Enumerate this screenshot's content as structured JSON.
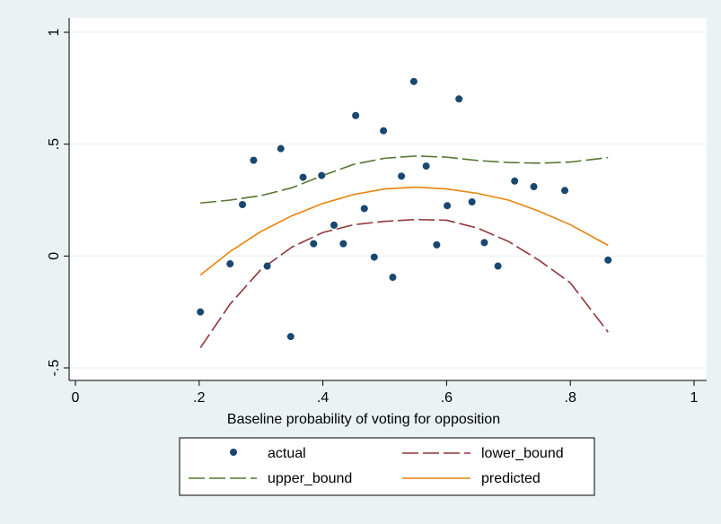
{
  "chart_data": {
    "type": "scatter",
    "title": "",
    "xlabel": "Baseline probability of voting for opposition",
    "ylabel": "",
    "xlim": [
      0,
      1
    ],
    "ylim": [
      -0.55,
      1.05
    ],
    "x_ticks": [
      {
        "value": 0,
        "label": "0"
      },
      {
        "value": 0.2,
        "label": ".2"
      },
      {
        "value": 0.4,
        "label": ".4"
      },
      {
        "value": 0.6,
        "label": ".6"
      },
      {
        "value": 0.8,
        "label": ".8"
      },
      {
        "value": 1,
        "label": "1"
      }
    ],
    "y_ticks": [
      {
        "value": -0.5,
        "label": "-.5"
      },
      {
        "value": 0,
        "label": "0"
      },
      {
        "value": 0.5,
        "label": ".5"
      },
      {
        "value": 1,
        "label": "1"
      }
    ],
    "grid": "horizontal",
    "legend_position": "bottom",
    "series": [
      {
        "name": "actual",
        "kind": "scatter",
        "color": "#1a476f",
        "points": [
          [
            0.202,
            -0.25
          ],
          [
            0.25,
            -0.035
          ],
          [
            0.27,
            0.23
          ],
          [
            0.288,
            0.428
          ],
          [
            0.31,
            -0.045
          ],
          [
            0.332,
            0.48
          ],
          [
            0.348,
            -0.36
          ],
          [
            0.368,
            0.352
          ],
          [
            0.385,
            0.055
          ],
          [
            0.398,
            0.36
          ],
          [
            0.418,
            0.138
          ],
          [
            0.433,
            0.055
          ],
          [
            0.453,
            0.628
          ],
          [
            0.467,
            0.212
          ],
          [
            0.483,
            -0.005
          ],
          [
            0.498,
            0.56
          ],
          [
            0.513,
            -0.095
          ],
          [
            0.527,
            0.357
          ],
          [
            0.547,
            0.78
          ],
          [
            0.567,
            0.402
          ],
          [
            0.584,
            0.05
          ],
          [
            0.601,
            0.225
          ],
          [
            0.62,
            0.702
          ],
          [
            0.641,
            0.242
          ],
          [
            0.661,
            0.06
          ],
          [
            0.683,
            -0.045
          ],
          [
            0.71,
            0.335
          ],
          [
            0.741,
            0.31
          ],
          [
            0.791,
            0.293
          ],
          [
            0.861,
            -0.018
          ]
        ]
      },
      {
        "name": "lower_bound",
        "kind": "line",
        "dash": "long",
        "color": "#90353b",
        "points": [
          [
            0.202,
            -0.41
          ],
          [
            0.25,
            -0.215
          ],
          [
            0.3,
            -0.06
          ],
          [
            0.35,
            0.04
          ],
          [
            0.4,
            0.105
          ],
          [
            0.45,
            0.14
          ],
          [
            0.5,
            0.155
          ],
          [
            0.55,
            0.163
          ],
          [
            0.6,
            0.16
          ],
          [
            0.65,
            0.125
          ],
          [
            0.7,
            0.065
          ],
          [
            0.75,
            -0.02
          ],
          [
            0.8,
            -0.12
          ],
          [
            0.861,
            -0.34
          ]
        ]
      },
      {
        "name": "upper_bound",
        "kind": "line",
        "dash": "long",
        "color": "#55752f",
        "points": [
          [
            0.202,
            0.237
          ],
          [
            0.25,
            0.25
          ],
          [
            0.3,
            0.27
          ],
          [
            0.35,
            0.305
          ],
          [
            0.4,
            0.36
          ],
          [
            0.45,
            0.41
          ],
          [
            0.5,
            0.437
          ],
          [
            0.55,
            0.447
          ],
          [
            0.6,
            0.442
          ],
          [
            0.65,
            0.427
          ],
          [
            0.7,
            0.418
          ],
          [
            0.75,
            0.415
          ],
          [
            0.8,
            0.42
          ],
          [
            0.861,
            0.44
          ]
        ]
      },
      {
        "name": "predicted",
        "kind": "line",
        "dash": "solid",
        "color": "#e8830b",
        "points": [
          [
            0.202,
            -0.085
          ],
          [
            0.25,
            0.02
          ],
          [
            0.3,
            0.11
          ],
          [
            0.35,
            0.18
          ],
          [
            0.4,
            0.235
          ],
          [
            0.45,
            0.275
          ],
          [
            0.5,
            0.3
          ],
          [
            0.55,
            0.308
          ],
          [
            0.6,
            0.3
          ],
          [
            0.65,
            0.28
          ],
          [
            0.7,
            0.25
          ],
          [
            0.75,
            0.2
          ],
          [
            0.8,
            0.14
          ],
          [
            0.861,
            0.048
          ]
        ]
      }
    ],
    "legend": [
      {
        "series": "actual",
        "label": "actual"
      },
      {
        "series": "lower_bound",
        "label": "lower_bound"
      },
      {
        "series": "upper_bound",
        "label": "upper_bound"
      },
      {
        "series": "predicted",
        "label": "predicted"
      }
    ],
    "colors": {
      "outer_background": "#eaf2f3",
      "plot_background": "#ffffff",
      "gridline": "#eaf2f3",
      "axis": "#000000"
    }
  }
}
